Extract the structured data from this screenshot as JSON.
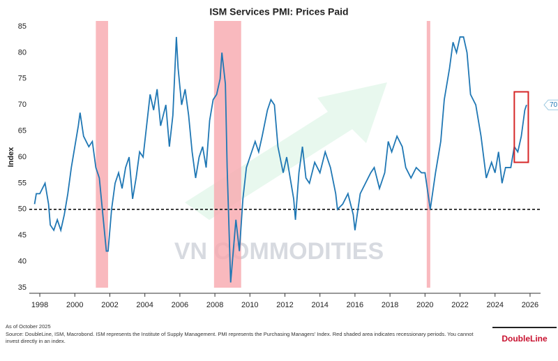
{
  "chart_data": {
    "type": "line",
    "title": "ISM Services PMI: Prices Paid",
    "y_label": "Index",
    "x": [
      1997.7,
      1997.8,
      1998.0,
      1998.3,
      1998.5,
      1998.6,
      1998.8,
      1999.0,
      1999.2,
      1999.4,
      1999.6,
      1999.8,
      2000.0,
      2000.2,
      2000.3,
      2000.5,
      2000.8,
      2001.0,
      2001.2,
      2001.4,
      2001.6,
      2001.8,
      2001.9,
      2002.1,
      2002.3,
      2002.5,
      2002.7,
      2002.9,
      2003.1,
      2003.3,
      2003.5,
      2003.7,
      2003.9,
      2004.1,
      2004.3,
      2004.5,
      2004.7,
      2004.9,
      2005.2,
      2005.4,
      2005.6,
      2005.8,
      2005.9,
      2006.1,
      2006.3,
      2006.5,
      2006.7,
      2006.9,
      2007.1,
      2007.3,
      2007.5,
      2007.7,
      2007.9,
      2008.1,
      2008.3,
      2008.4,
      2008.6,
      2008.7,
      2008.9,
      2009.0,
      2009.2,
      2009.4,
      2009.6,
      2009.8,
      2010.0,
      2010.3,
      2010.5,
      2010.7,
      2011.0,
      2011.2,
      2011.4,
      2011.6,
      2011.9,
      2012.1,
      2012.3,
      2012.5,
      2012.6,
      2012.8,
      2013.0,
      2013.2,
      2013.4,
      2013.7,
      2014.0,
      2014.3,
      2014.6,
      2014.9,
      2015.0,
      2015.3,
      2015.6,
      2015.9,
      2016.0,
      2016.3,
      2016.6,
      2016.9,
      2017.1,
      2017.4,
      2017.7,
      2017.9,
      2018.1,
      2018.4,
      2018.7,
      2018.9,
      2019.2,
      2019.5,
      2019.8,
      2020.0,
      2020.3,
      2020.6,
      2020.9,
      2021.1,
      2021.4,
      2021.6,
      2021.8,
      2022.0,
      2022.2,
      2022.4,
      2022.6,
      2022.9,
      2023.2,
      2023.5,
      2023.8,
      2024.0,
      2024.2,
      2024.4,
      2024.6,
      2024.9,
      2025.1,
      2025.3,
      2025.5,
      2025.7,
      2025.8
    ],
    "series": [
      {
        "name": "ISM Services PMI: Prices Paid",
        "color": "#1f77b4",
        "values": [
          51,
          53,
          53,
          55,
          51,
          47,
          46,
          48,
          46,
          49,
          53,
          58,
          62,
          66,
          68.5,
          64,
          62,
          63,
          58,
          56,
          49,
          42,
          42,
          50,
          55,
          57,
          54,
          58,
          60,
          52,
          56,
          61,
          60,
          66,
          72,
          69,
          73,
          66,
          70,
          62,
          68,
          83,
          77,
          70,
          73,
          68,
          61,
          56,
          60,
          62,
          58,
          67,
          71,
          72,
          75,
          80,
          74,
          58,
          36,
          40,
          48,
          42,
          52,
          58,
          60,
          63,
          61,
          64,
          69,
          71,
          70,
          62,
          57,
          60,
          56,
          52,
          48,
          57,
          62,
          56,
          55,
          59,
          57,
          61,
          58,
          53,
          50,
          51,
          53,
          49,
          46,
          53,
          55,
          57,
          58,
          54,
          57,
          63,
          61,
          64,
          62,
          58,
          56,
          58,
          57,
          57,
          50,
          57,
          63,
          71,
          77,
          82,
          80,
          83,
          83,
          80,
          72,
          70,
          64,
          56,
          59,
          57,
          61,
          55,
          58,
          58,
          62,
          61,
          64,
          69,
          70
        ]
      }
    ],
    "xlim": [
      1997.4,
      2026.6
    ],
    "ylim": [
      35,
      85
    ],
    "xticks": [
      1998,
      2000,
      2002,
      2004,
      2006,
      2008,
      2010,
      2012,
      2014,
      2016,
      2018,
      2020,
      2022,
      2024,
      2026
    ],
    "yticks": [
      35,
      40,
      45,
      50,
      55,
      60,
      65,
      70,
      75,
      80,
      85
    ],
    "reference_line": 50,
    "recessions": [
      [
        2001.2,
        2001.9
      ],
      [
        2007.95,
        2009.5
      ],
      [
        2020.1,
        2020.3
      ]
    ],
    "recession_color": "#f7a8ae",
    "highlight": {
      "x": [
        2025.1,
        2025.9
      ],
      "y": [
        59,
        72.5
      ],
      "color": "#d62728"
    },
    "watermark": "VN COMMODITIES",
    "notes": [
      "As of October 2025",
      "Source: DoubleLine, ISM, Macrobond. ISM represents the Institute of Supply Management. PMI represents the Purchasing Managers' Index. Red shaded area indicates recessionary periods. You cannot invest directly in an index."
    ],
    "logo": "DoubleLine"
  }
}
